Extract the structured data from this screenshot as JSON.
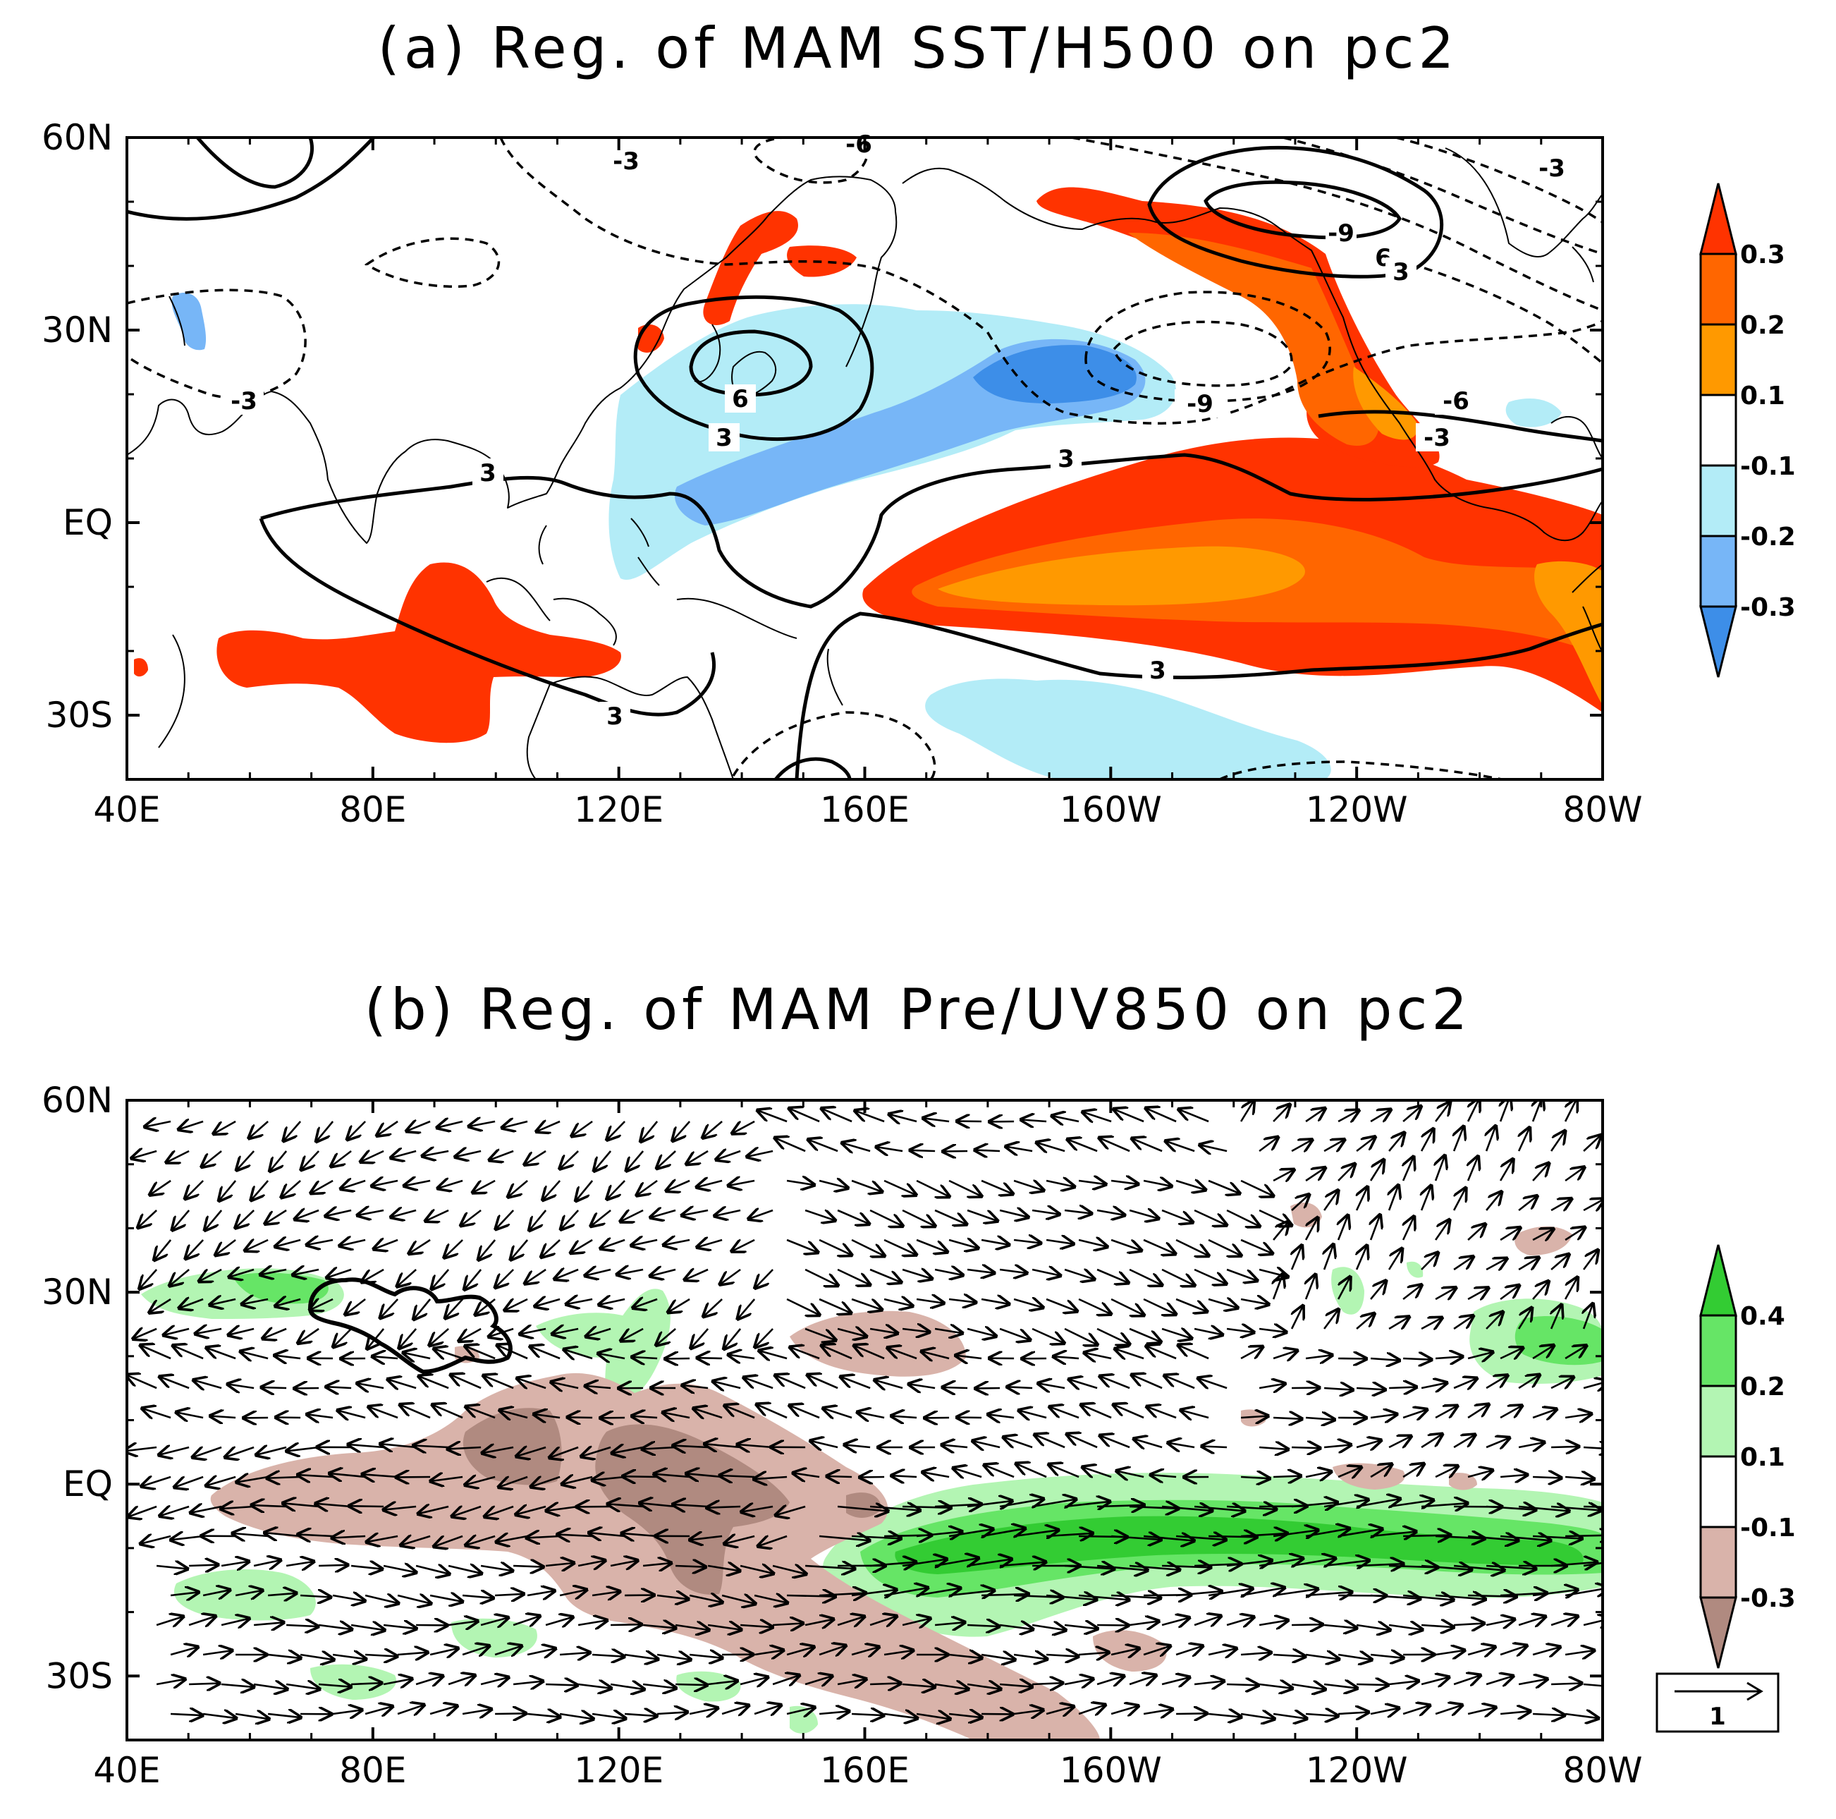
{
  "panels": [
    {
      "id": "a",
      "title": "(a) Reg. of MAM SST/H500 on pc2",
      "shaded_variable": "SST",
      "contour_variable": "H500",
      "lat_labels": [
        "60N",
        "30N",
        "EQ",
        "30S"
      ],
      "lon_labels": [
        "40E",
        "80E",
        "120E",
        "160E",
        "160W",
        "120W",
        "80W"
      ],
      "colorbar": {
        "labels": [
          "0.3",
          "0.2",
          "0.1",
          "-0.1",
          "-0.2",
          "-0.3"
        ],
        "colors": [
          "#ff3300",
          "#ff6600",
          "#ff9900",
          "#ffffff",
          "#b3ecf7",
          "#77b6f7",
          "#3d8ee8"
        ]
      },
      "contour_labels": [
        "-3",
        "-3",
        "-6",
        "-9",
        "6",
        "3",
        "6",
        "-3",
        "3",
        "3",
        "-9",
        "-6",
        "-3",
        "3",
        "3"
      ]
    },
    {
      "id": "b",
      "title": "(b) Reg. of MAM Pre/UV850 on pc2",
      "shaded_variable": "Pre",
      "vector_variable": "UV850",
      "lat_labels": [
        "60N",
        "30N",
        "EQ",
        "30S"
      ],
      "lon_labels": [
        "40E",
        "80E",
        "120E",
        "160E",
        "160W",
        "120W",
        "80W"
      ],
      "colorbar": {
        "labels": [
          "0.4",
          "0.2",
          "0.1",
          "-0.1",
          "-0.3"
        ],
        "colors": [
          "#33cc33",
          "#66e566",
          "#b3f5b3",
          "#ffffff",
          "#d9b3aa",
          "#b08a80"
        ]
      },
      "reference_vector": "1"
    }
  ]
}
